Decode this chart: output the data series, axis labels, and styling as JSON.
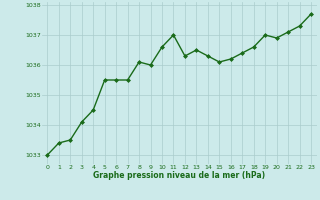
{
  "x": [
    0,
    1,
    2,
    3,
    4,
    5,
    6,
    7,
    8,
    9,
    10,
    11,
    12,
    13,
    14,
    15,
    16,
    17,
    18,
    19,
    20,
    21,
    22,
    23
  ],
  "y": [
    1033.0,
    1033.4,
    1033.5,
    1034.1,
    1034.5,
    1035.5,
    1035.5,
    1035.5,
    1036.1,
    1036.0,
    1036.6,
    1037.0,
    1036.3,
    1036.5,
    1036.3,
    1036.1,
    1036.2,
    1036.4,
    1036.6,
    1037.0,
    1036.9,
    1037.1,
    1037.3,
    1037.7
  ],
  "ylim": [
    1032.7,
    1038.1
  ],
  "yticks": [
    1033,
    1034,
    1035,
    1036,
    1037,
    1038
  ],
  "xticks": [
    0,
    1,
    2,
    3,
    4,
    5,
    6,
    7,
    8,
    9,
    10,
    11,
    12,
    13,
    14,
    15,
    16,
    17,
    18,
    19,
    20,
    21,
    22,
    23
  ],
  "line_color": "#1a6b1a",
  "marker_color": "#1a6b1a",
  "bg_color": "#cceaea",
  "grid_color": "#aacccc",
  "xlabel": "Graphe pression niveau de la mer (hPa)",
  "xlabel_color": "#1a6b1a",
  "tick_color": "#1a6b1a",
  "marker": "D",
  "markersize": 2.0,
  "linewidth": 1.0
}
